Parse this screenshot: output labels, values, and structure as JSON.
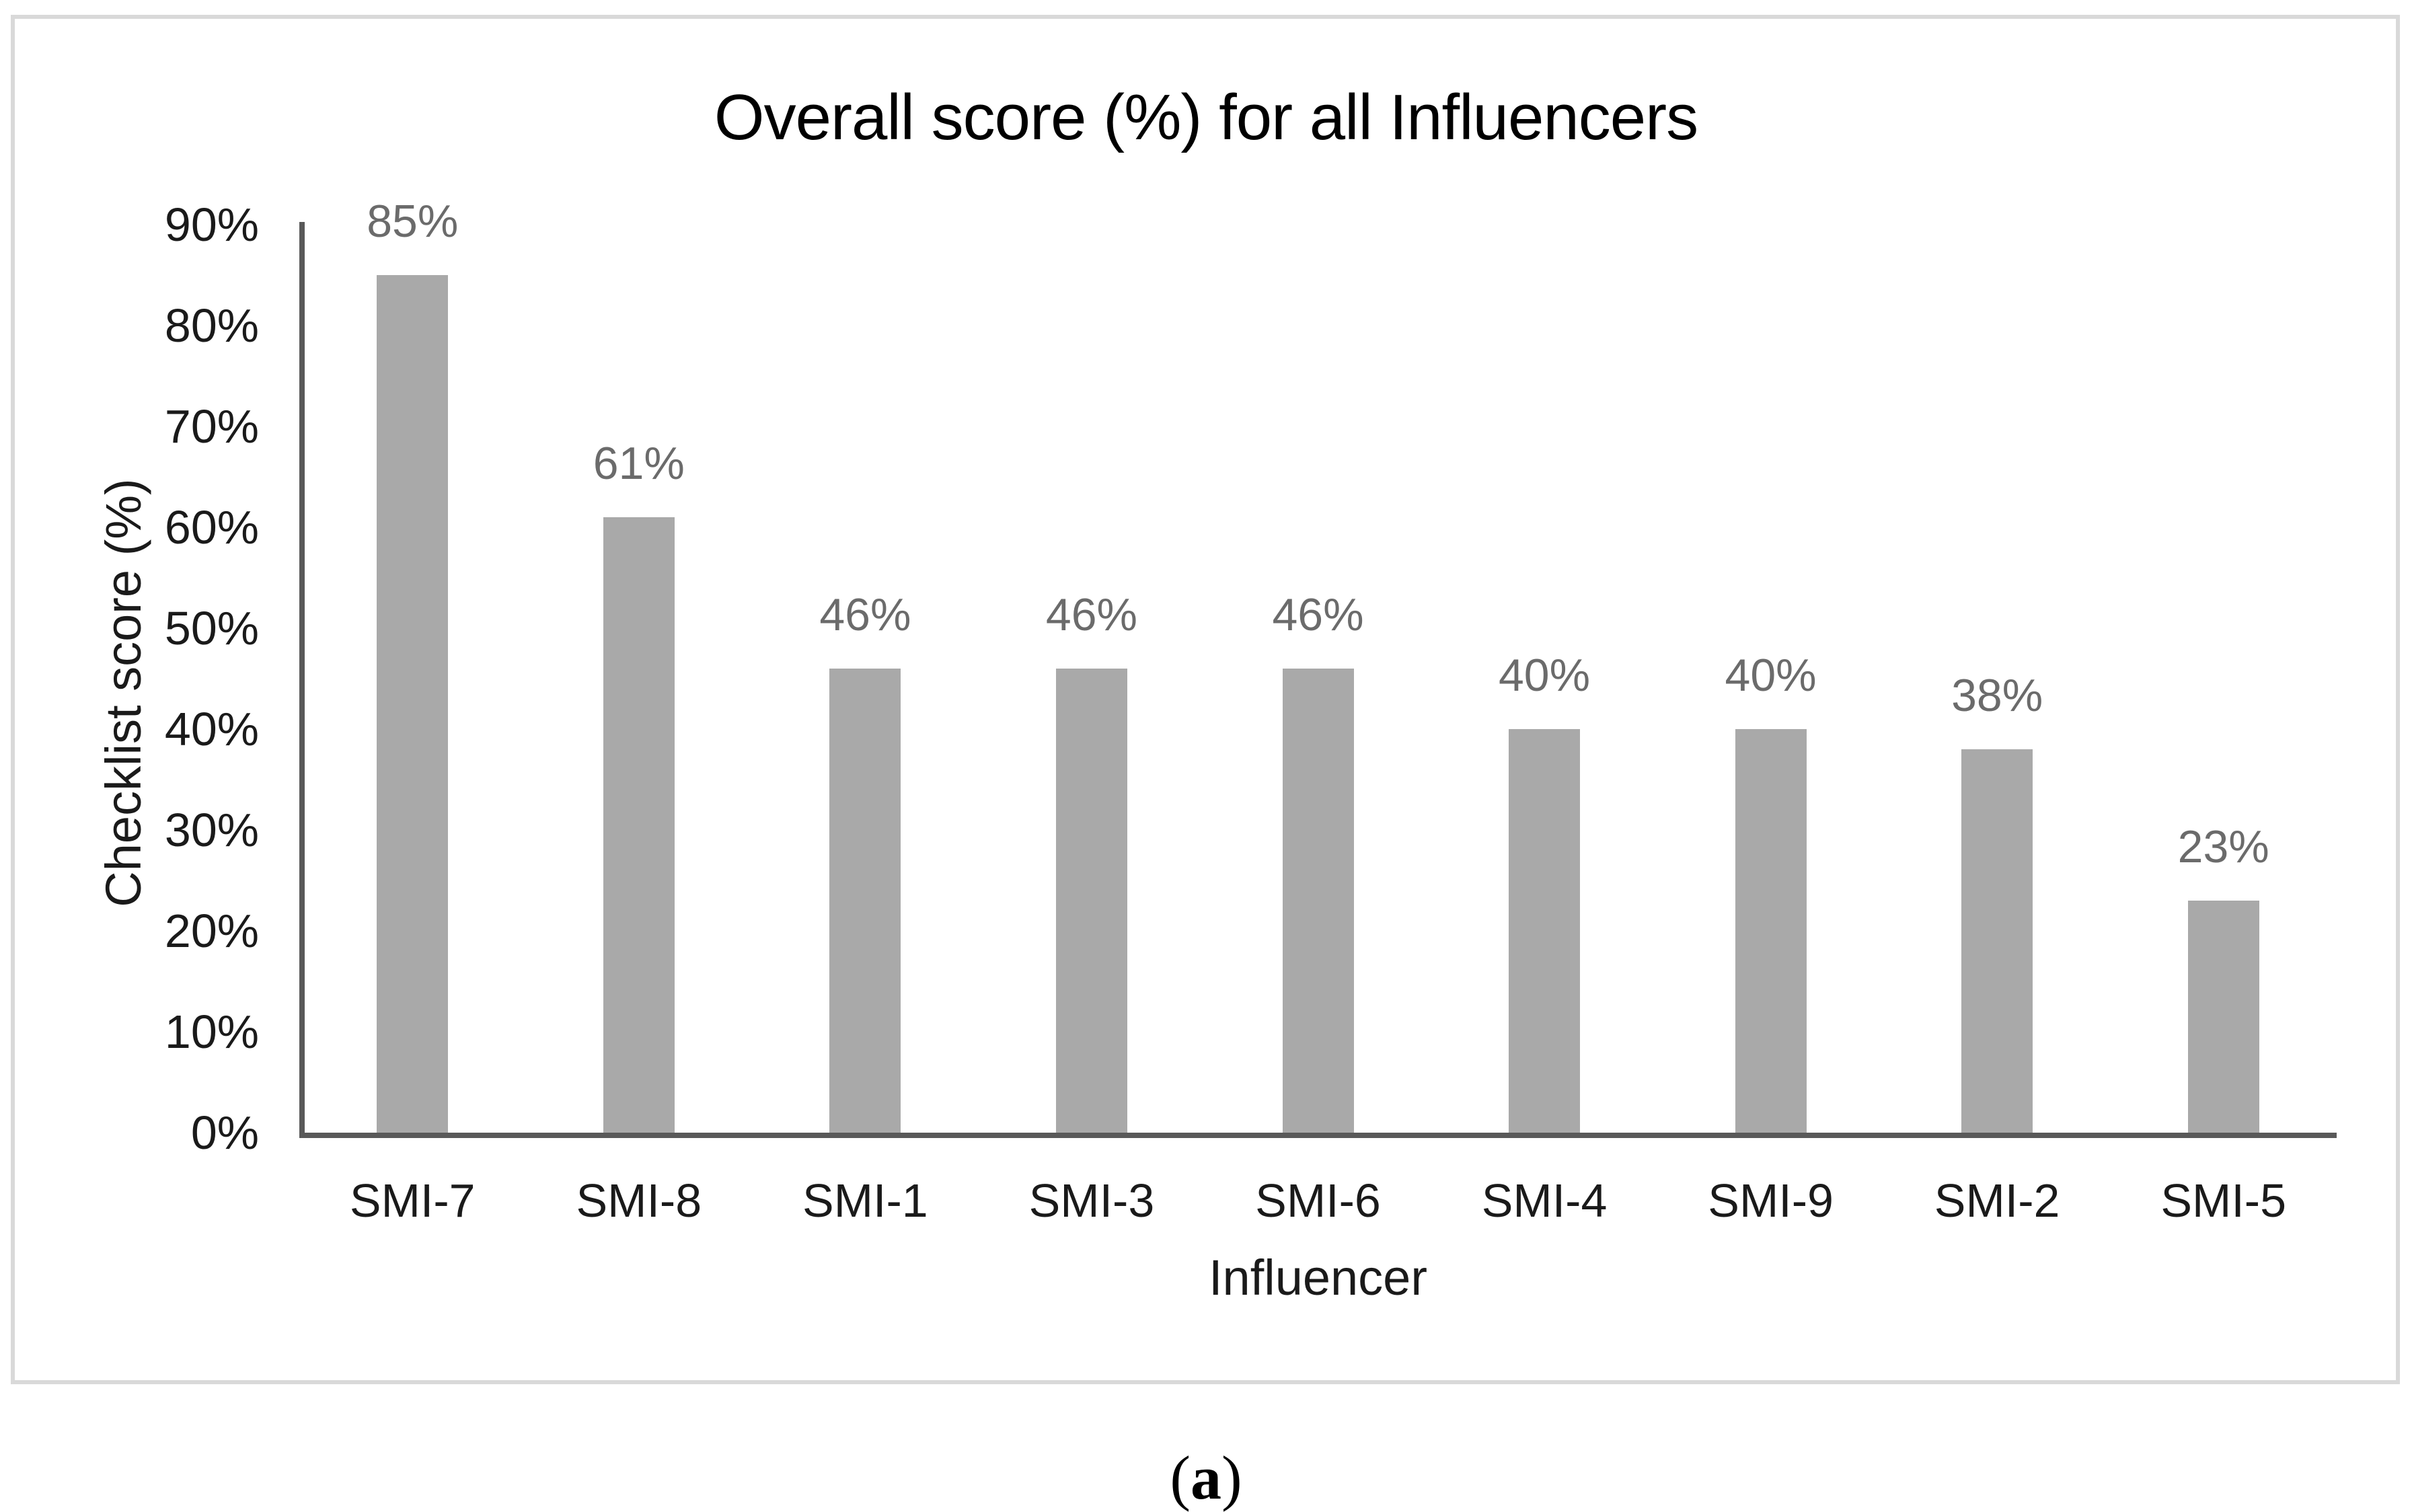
{
  "chart_data": {
    "type": "bar",
    "title": "Overall score (%) for all Influencers",
    "xlabel": "Influencer",
    "ylabel": "Checklist score (%)",
    "categories": [
      "SMI-7",
      "SMI-8",
      "SMI-1",
      "SMI-3",
      "SMI-6",
      "SMI-4",
      "SMI-9",
      "SMI-2",
      "SMI-5"
    ],
    "values": [
      85,
      61,
      46,
      46,
      46,
      40,
      40,
      38,
      23
    ],
    "data_labels": [
      "85%",
      "61%",
      "46%",
      "46%",
      "46%",
      "40%",
      "40%",
      "38%",
      "23%"
    ],
    "ylim": [
      0,
      90
    ],
    "ytick_step": 10,
    "ytick_labels": [
      "0%",
      "10%",
      "20%",
      "30%",
      "40%",
      "50%",
      "60%",
      "70%",
      "80%",
      "90%"
    ],
    "grid": false,
    "legend_position": "none"
  },
  "colors": {
    "bar": "#a9a9a9",
    "axis_line": "#595959",
    "data_label": "#6b6b6b",
    "tick_text": "#1a1a1a",
    "title_text": "#000000",
    "frame_border": "#d9d9d9",
    "background": "#ffffff"
  },
  "caption": {
    "open": "(",
    "letter": "a",
    "close": ")"
  }
}
